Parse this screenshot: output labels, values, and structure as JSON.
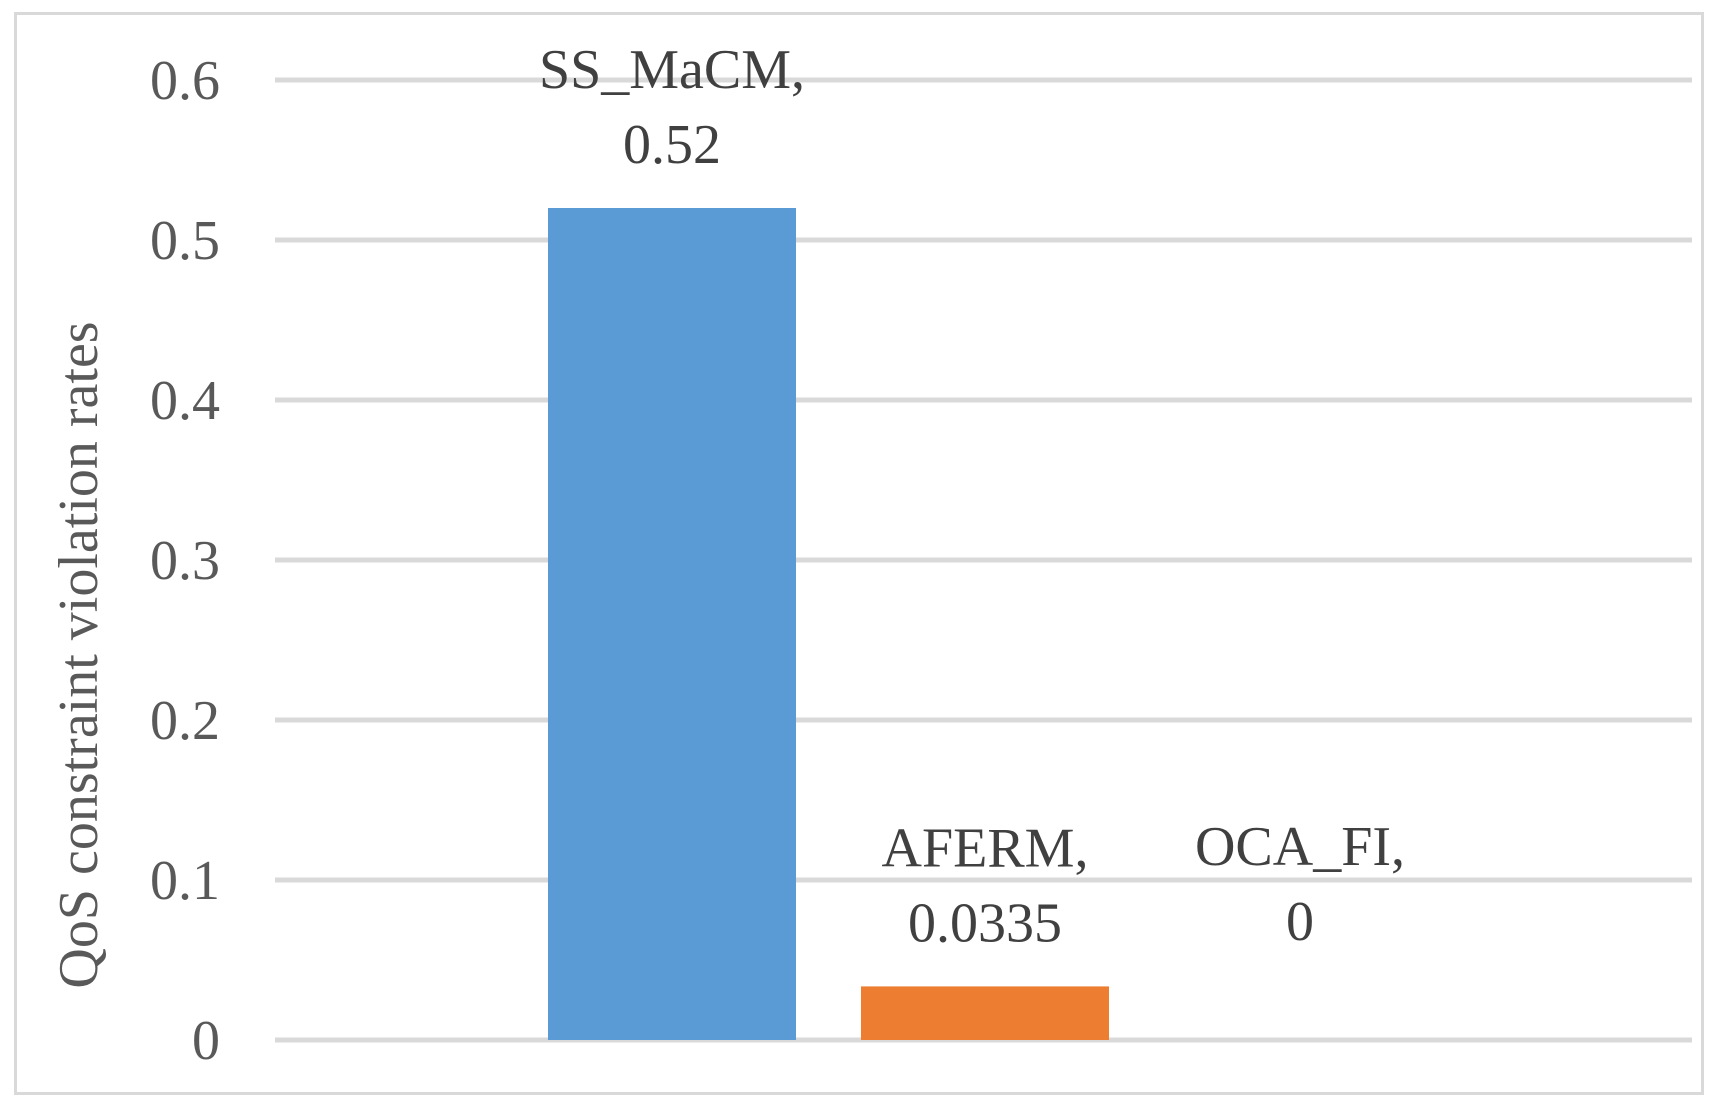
{
  "chart_data": {
    "type": "bar",
    "title": "",
    "xlabel": "",
    "ylabel": "QoS constraint violation rates",
    "categories": [
      "SS_MaCM",
      "AFERM",
      "OCA_FI"
    ],
    "values": [
      0.52,
      0.0335,
      0
    ],
    "data_labels": [
      [
        "SS_MaCM,",
        "0.52"
      ],
      [
        "AFERM,",
        "0.0335"
      ],
      [
        "OCA_FI,",
        "0"
      ]
    ],
    "bar_colors": [
      "#5b9bd5",
      "#ed7d31",
      "#a5a5a5"
    ],
    "ylim": [
      0,
      0.6
    ],
    "yticks": [
      0,
      0.1,
      0.2,
      0.3,
      0.4,
      0.5,
      0.6
    ],
    "ytick_labels": [
      "0",
      "0.1",
      "0.2",
      "0.3",
      "0.4",
      "0.5",
      "0.6"
    ],
    "grid": true,
    "gridline_color": "#d9d9d9",
    "legend": "none"
  }
}
